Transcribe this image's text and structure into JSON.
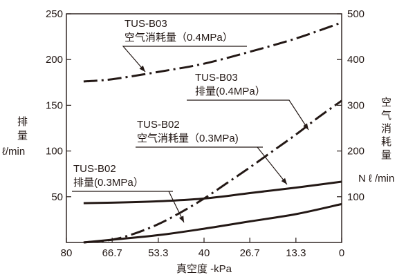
{
  "chart_data": {
    "type": "line",
    "x_label": "真空度 -kPa",
    "x_ticks": [
      "80",
      "66.7",
      "53.3",
      "40",
      "26.7",
      "13.3",
      "0"
    ],
    "x_range": [
      80,
      0
    ],
    "left_axis": {
      "label_chars": [
        "排",
        "量"
      ],
      "unit": "ℓ/min",
      "ticks": [
        "250",
        "200",
        "150",
        "100",
        "50"
      ],
      "range": [
        0,
        250
      ]
    },
    "right_axis": {
      "label_chars": [
        "空",
        "气",
        "消",
        "耗",
        "量"
      ],
      "unit": "N ℓ /min",
      "ticks": [
        "500",
        "400",
        "300",
        "200",
        "100"
      ],
      "range": [
        0,
        500
      ]
    },
    "annotations": [
      {
        "line1": "TUS-B03",
        "line2": "空气消耗量（0.4MPa）"
      },
      {
        "line1": "TUS-B03",
        "line2": "排量(0.4MPa）"
      },
      {
        "line1": "TUS-B02",
        "line2": "空气消耗量（0.3MPa)"
      },
      {
        "line1": "TUS-B02",
        "line2": "排量(0.3MPa）"
      }
    ],
    "series": [
      {
        "name": "TUS-B03 空气消耗量（0.4MPa）",
        "axis": "right",
        "style": "dashdot",
        "x": [
          75,
          66.7,
          53.3,
          40,
          26.7,
          13.3,
          0
        ],
        "y": [
          352,
          357,
          373,
          391,
          417,
          446,
          481
        ]
      },
      {
        "name": "TUS-B03 排量(0.4MPa）",
        "axis": "left",
        "style": "dashdot",
        "x": [
          75,
          66.7,
          60,
          53.3,
          46.7,
          40,
          33.3,
          26.7,
          20,
          13.3,
          6.7,
          0
        ],
        "y": [
          0,
          3,
          10,
          20,
          33,
          48,
          65,
          82,
          100,
          118,
          137,
          155
        ]
      },
      {
        "name": "TUS-B02 空气消耗量（0.3MPa)",
        "axis": "right",
        "style": "solid",
        "x": [
          75,
          66.7,
          53.3,
          40,
          26.7,
          13.3,
          0
        ],
        "y": [
          86,
          87,
          90,
          96,
          108,
          120,
          133
        ]
      },
      {
        "name": "TUS-B02 排量(0.3MPa）",
        "axis": "left",
        "style": "solid",
        "x": [
          75,
          66.7,
          53.3,
          40,
          26.7,
          13.3,
          0
        ],
        "y": [
          0,
          3,
          8,
          15,
          23,
          31,
          42
        ]
      }
    ],
    "grid": false,
    "legend": "none"
  },
  "colors": {
    "ink": "#231815",
    "background": "#ffffff"
  }
}
